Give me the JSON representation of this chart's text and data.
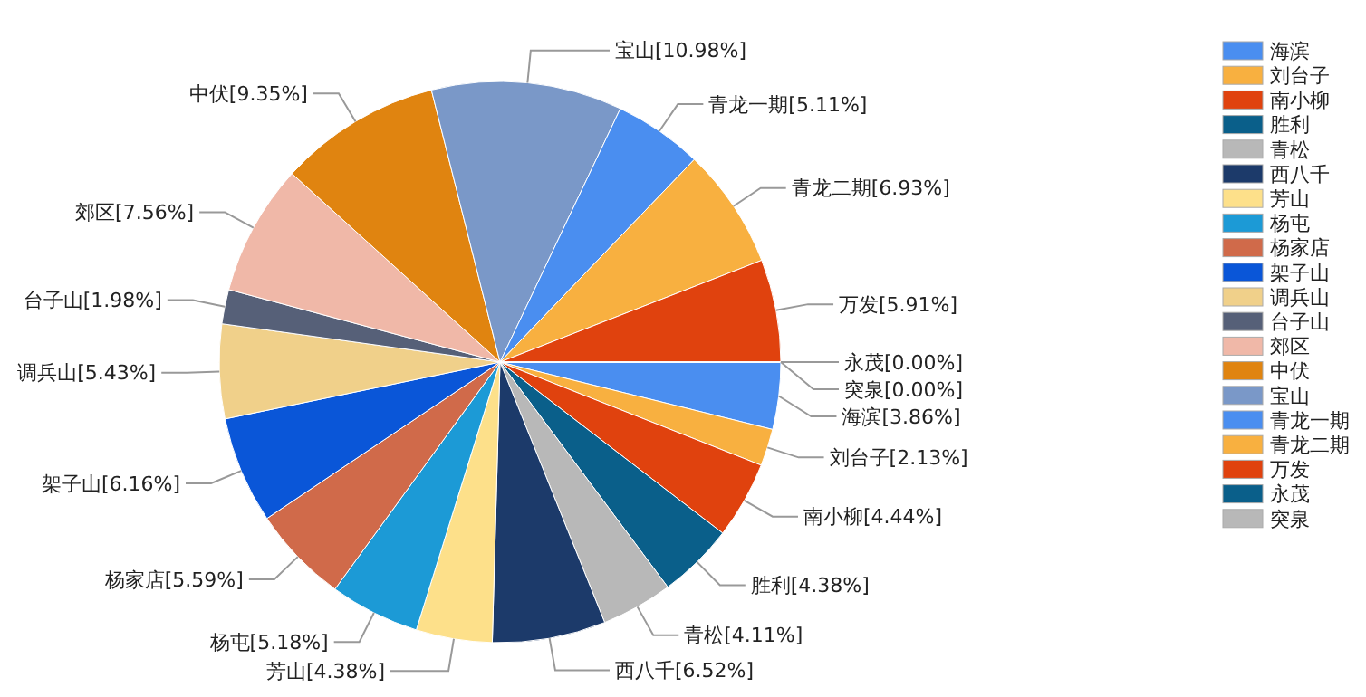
{
  "chart_data": {
    "type": "pie",
    "categories": [
      "海滨",
      "刘台子",
      "南小柳",
      "胜利",
      "青松",
      "西八千",
      "芳山",
      "杨屯",
      "杨家店",
      "架子山",
      "调兵山",
      "台子山",
      "郊区",
      "中伏",
      "宝山",
      "青龙一期",
      "青龙二期",
      "万发",
      "永茂",
      "突泉"
    ],
    "values": [
      3.86,
      2.13,
      4.44,
      4.38,
      4.11,
      6.52,
      4.38,
      5.18,
      5.59,
      6.16,
      5.43,
      1.98,
      7.56,
      9.35,
      10.98,
      5.11,
      6.93,
      5.91,
      0,
      0
    ],
    "colors": [
      "#4a8ef0",
      "#f8b040",
      "#e0420e",
      "#0a5f8a",
      "#b8b8b8",
      "#1c3a6a",
      "#fde08a",
      "#1c9ad6",
      "#d06a4a",
      "#0a56d8",
      "#f0d08a",
      "#566078",
      "#f0b8a8",
      "#e08410",
      "#7a98c8",
      "#4a8ef0",
      "#f8b040",
      "#e0420e",
      "#0a5f8a",
      "#b8b8b8"
    ],
    "value_labels": [
      "海滨[3.86%]",
      "刘台子[2.13%]",
      "南小柳[4.44%]",
      "胜利[4.38%]",
      "青松[4.11%]",
      "西八千[6.52%]",
      "芳山[4.38%]",
      "杨屯[5.18%]",
      "杨家店[5.59%]",
      "架子山[6.16%]",
      "调兵山[5.43%]",
      "台子山[1.98%]",
      "郊区[7.56%]",
      "中伏[9.35%]",
      "宝山[10.98%]",
      "青龙一期[5.11%]",
      "青龙二期[6.93%]",
      "万发[5.91%]",
      "永茂[0.00%]",
      "突泉[0.00%]"
    ],
    "legend": "right"
  }
}
